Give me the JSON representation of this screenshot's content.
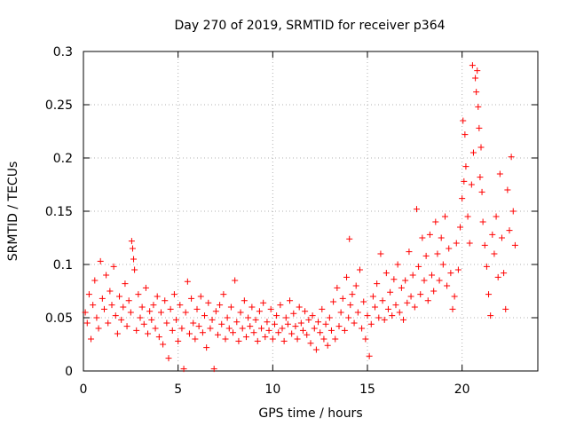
{
  "chart_data": {
    "type": "scatter",
    "title": "Day 270 of 2019, SRMTID for receiver p364",
    "xlabel": "GPS time / hours",
    "ylabel": "SRMTID / TECUs",
    "xlim": [
      0,
      24
    ],
    "ylim": [
      0,
      0.3
    ],
    "x_ticks": [
      0,
      5,
      10,
      15,
      20
    ],
    "x_tick_labels": [
      "0",
      "5",
      "10",
      "15",
      "20"
    ],
    "y_ticks": [
      0,
      0.05,
      0.1,
      0.15,
      0.2,
      0.25,
      0.3
    ],
    "y_tick_labels": [
      "0",
      "0.05",
      "0.1",
      "0.15",
      "0.2",
      "0.25",
      "0.3"
    ],
    "grid": true,
    "marker": "+",
    "marker_color": "#ff0000",
    "series": [
      {
        "name": "SRMTID",
        "points": [
          [
            0.1,
            0.055
          ],
          [
            0.2,
            0.045
          ],
          [
            0.3,
            0.072
          ],
          [
            0.4,
            0.03
          ],
          [
            0.5,
            0.062
          ],
          [
            0.6,
            0.085
          ],
          [
            0.7,
            0.05
          ],
          [
            0.8,
            0.04
          ],
          [
            0.9,
            0.103
          ],
          [
            1.0,
            0.068
          ],
          [
            1.1,
            0.058
          ],
          [
            1.2,
            0.09
          ],
          [
            1.3,
            0.045
          ],
          [
            1.4,
            0.075
          ],
          [
            1.5,
            0.062
          ],
          [
            1.6,
            0.098
          ],
          [
            1.7,
            0.052
          ],
          [
            1.8,
            0.035
          ],
          [
            1.9,
            0.07
          ],
          [
            2.0,
            0.048
          ],
          [
            2.1,
            0.06
          ],
          [
            2.2,
            0.082
          ],
          [
            2.3,
            0.042
          ],
          [
            2.4,
            0.066
          ],
          [
            2.5,
            0.055
          ],
          [
            2.55,
            0.122
          ],
          [
            2.6,
            0.115
          ],
          [
            2.65,
            0.105
          ],
          [
            2.7,
            0.095
          ],
          [
            2.8,
            0.038
          ],
          [
            2.9,
            0.072
          ],
          [
            3.0,
            0.05
          ],
          [
            3.1,
            0.06
          ],
          [
            3.2,
            0.044
          ],
          [
            3.3,
            0.078
          ],
          [
            3.4,
            0.035
          ],
          [
            3.5,
            0.056
          ],
          [
            3.6,
            0.048
          ],
          [
            3.7,
            0.062
          ],
          [
            3.8,
            0.04
          ],
          [
            3.9,
            0.07
          ],
          [
            4.0,
            0.032
          ],
          [
            4.1,
            0.055
          ],
          [
            4.2,
            0.025
          ],
          [
            4.3,
            0.066
          ],
          [
            4.4,
            0.045
          ],
          [
            4.5,
            0.012
          ],
          [
            4.6,
            0.058
          ],
          [
            4.7,
            0.038
          ],
          [
            4.8,
            0.072
          ],
          [
            4.9,
            0.048
          ],
          [
            5.0,
            0.028
          ],
          [
            5.1,
            0.062
          ],
          [
            5.2,
            0.04
          ],
          [
            5.3,
            0.002
          ],
          [
            5.4,
            0.055
          ],
          [
            5.5,
            0.084
          ],
          [
            5.6,
            0.035
          ],
          [
            5.7,
            0.068
          ],
          [
            5.8,
            0.045
          ],
          [
            5.9,
            0.03
          ],
          [
            6.0,
            0.058
          ],
          [
            6.1,
            0.042
          ],
          [
            6.2,
            0.07
          ],
          [
            6.3,
            0.036
          ],
          [
            6.4,
            0.052
          ],
          [
            6.5,
            0.022
          ],
          [
            6.6,
            0.064
          ],
          [
            6.7,
            0.04
          ],
          [
            6.8,
            0.048
          ],
          [
            6.9,
            0.002
          ],
          [
            7.0,
            0.056
          ],
          [
            7.1,
            0.034
          ],
          [
            7.2,
            0.062
          ],
          [
            7.3,
            0.044
          ],
          [
            7.4,
            0.072
          ],
          [
            7.5,
            0.03
          ],
          [
            7.6,
            0.05
          ],
          [
            7.7,
            0.04
          ],
          [
            7.8,
            0.06
          ],
          [
            7.9,
            0.036
          ],
          [
            8.0,
            0.085
          ],
          [
            8.1,
            0.046
          ],
          [
            8.2,
            0.028
          ],
          [
            8.3,
            0.055
          ],
          [
            8.4,
            0.04
          ],
          [
            8.5,
            0.066
          ],
          [
            8.6,
            0.032
          ],
          [
            8.7,
            0.05
          ],
          [
            8.8,
            0.042
          ],
          [
            8.9,
            0.06
          ],
          [
            9.0,
            0.036
          ],
          [
            9.1,
            0.048
          ],
          [
            9.2,
            0.028
          ],
          [
            9.3,
            0.056
          ],
          [
            9.4,
            0.04
          ],
          [
            9.5,
            0.064
          ],
          [
            9.6,
            0.032
          ],
          [
            9.7,
            0.046
          ],
          [
            9.8,
            0.038
          ],
          [
            9.9,
            0.058
          ],
          [
            10.0,
            0.03
          ],
          [
            10.1,
            0.044
          ],
          [
            10.2,
            0.052
          ],
          [
            10.3,
            0.036
          ],
          [
            10.4,
            0.062
          ],
          [
            10.5,
            0.04
          ],
          [
            10.6,
            0.028
          ],
          [
            10.7,
            0.05
          ],
          [
            10.8,
            0.044
          ],
          [
            10.9,
            0.066
          ],
          [
            11.0,
            0.035
          ],
          [
            11.1,
            0.054
          ],
          [
            11.2,
            0.042
          ],
          [
            11.3,
            0.03
          ],
          [
            11.4,
            0.06
          ],
          [
            11.5,
            0.045
          ],
          [
            11.6,
            0.038
          ],
          [
            11.7,
            0.056
          ],
          [
            11.8,
            0.034
          ],
          [
            11.9,
            0.048
          ],
          [
            12.0,
            0.026
          ],
          [
            12.1,
            0.052
          ],
          [
            12.2,
            0.04
          ],
          [
            12.3,
            0.02
          ],
          [
            12.4,
            0.046
          ],
          [
            12.5,
            0.036
          ],
          [
            12.6,
            0.058
          ],
          [
            12.7,
            0.03
          ],
          [
            12.8,
            0.044
          ],
          [
            12.9,
            0.024
          ],
          [
            13.0,
            0.05
          ],
          [
            13.1,
            0.038
          ],
          [
            13.2,
            0.065
          ],
          [
            13.3,
            0.03
          ],
          [
            13.4,
            0.078
          ],
          [
            13.5,
            0.042
          ],
          [
            13.6,
            0.055
          ],
          [
            13.7,
            0.068
          ],
          [
            13.8,
            0.038
          ],
          [
            13.9,
            0.088
          ],
          [
            14.0,
            0.05
          ],
          [
            14.05,
            0.124
          ],
          [
            14.1,
            0.062
          ],
          [
            14.2,
            0.072
          ],
          [
            14.3,
            0.045
          ],
          [
            14.4,
            0.08
          ],
          [
            14.5,
            0.055
          ],
          [
            14.6,
            0.095
          ],
          [
            14.7,
            0.04
          ],
          [
            14.8,
            0.065
          ],
          [
            14.9,
            0.03
          ],
          [
            15.0,
            0.052
          ],
          [
            15.1,
            0.014
          ],
          [
            15.2,
            0.044
          ],
          [
            15.3,
            0.07
          ],
          [
            15.4,
            0.06
          ],
          [
            15.5,
            0.082
          ],
          [
            15.6,
            0.05
          ],
          [
            15.7,
            0.11
          ],
          [
            15.8,
            0.066
          ],
          [
            15.9,
            0.048
          ],
          [
            16.0,
            0.092
          ],
          [
            16.1,
            0.058
          ],
          [
            16.2,
            0.074
          ],
          [
            16.3,
            0.052
          ],
          [
            16.4,
            0.086
          ],
          [
            16.5,
            0.062
          ],
          [
            16.6,
            0.1
          ],
          [
            16.7,
            0.055
          ],
          [
            16.8,
            0.078
          ],
          [
            16.9,
            0.048
          ],
          [
            17.0,
            0.085
          ],
          [
            17.1,
            0.064
          ],
          [
            17.2,
            0.112
          ],
          [
            17.3,
            0.07
          ],
          [
            17.4,
            0.09
          ],
          [
            17.5,
            0.06
          ],
          [
            17.6,
            0.152
          ],
          [
            17.7,
            0.098
          ],
          [
            17.8,
            0.072
          ],
          [
            17.9,
            0.125
          ],
          [
            18.0,
            0.085
          ],
          [
            18.1,
            0.108
          ],
          [
            18.2,
            0.066
          ],
          [
            18.3,
            0.128
          ],
          [
            18.4,
            0.09
          ],
          [
            18.5,
            0.075
          ],
          [
            18.6,
            0.14
          ],
          [
            18.7,
            0.11
          ],
          [
            18.8,
            0.085
          ],
          [
            18.9,
            0.125
          ],
          [
            19.0,
            0.1
          ],
          [
            19.1,
            0.145
          ],
          [
            19.2,
            0.08
          ],
          [
            19.3,
            0.115
          ],
          [
            19.4,
            0.092
          ],
          [
            19.5,
            0.058
          ],
          [
            19.6,
            0.07
          ],
          [
            19.7,
            0.12
          ],
          [
            19.8,
            0.095
          ],
          [
            19.9,
            0.135
          ],
          [
            20.0,
            0.162
          ],
          [
            20.05,
            0.235
          ],
          [
            20.1,
            0.178
          ],
          [
            20.15,
            0.222
          ],
          [
            20.2,
            0.192
          ],
          [
            20.3,
            0.145
          ],
          [
            20.4,
            0.12
          ],
          [
            20.5,
            0.175
          ],
          [
            20.55,
            0.287
          ],
          [
            20.6,
            0.205
          ],
          [
            20.7,
            0.275
          ],
          [
            20.75,
            0.262
          ],
          [
            20.8,
            0.282
          ],
          [
            20.85,
            0.248
          ],
          [
            20.9,
            0.228
          ],
          [
            20.95,
            0.182
          ],
          [
            21.0,
            0.21
          ],
          [
            21.05,
            0.168
          ],
          [
            21.1,
            0.14
          ],
          [
            21.2,
            0.118
          ],
          [
            21.3,
            0.098
          ],
          [
            21.4,
            0.072
          ],
          [
            21.5,
            0.052
          ],
          [
            21.6,
            0.128
          ],
          [
            21.7,
            0.11
          ],
          [
            21.8,
            0.145
          ],
          [
            21.9,
            0.088
          ],
          [
            22.0,
            0.185
          ],
          [
            22.1,
            0.125
          ],
          [
            22.2,
            0.092
          ],
          [
            22.3,
            0.058
          ],
          [
            22.4,
            0.17
          ],
          [
            22.5,
            0.132
          ],
          [
            22.6,
            0.201
          ],
          [
            22.7,
            0.15
          ],
          [
            22.8,
            0.118
          ]
        ]
      }
    ]
  }
}
